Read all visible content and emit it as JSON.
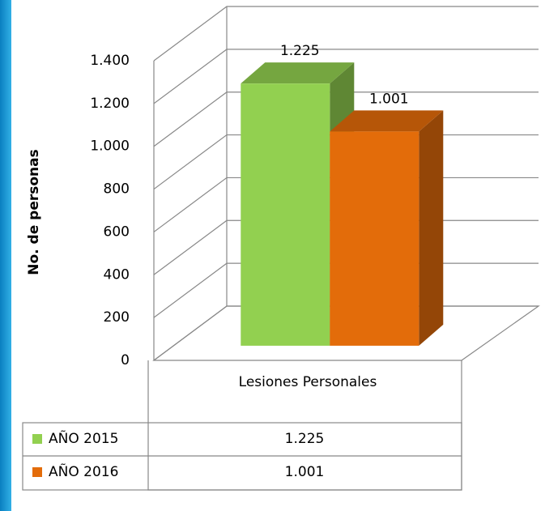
{
  "chart_data": {
    "type": "bar3d",
    "y_label": "No. de personas",
    "categories": [
      "Lesiones Personales"
    ],
    "series": [
      {
        "name": "AÑO 2015",
        "color": "#92d050",
        "values": [
          1225
        ],
        "value_labels": [
          "1.225"
        ]
      },
      {
        "name": "AÑO 2016",
        "color": "#e36c0a",
        "values": [
          1001
        ],
        "value_labels": [
          "1.001"
        ]
      }
    ],
    "ylim": [
      0,
      1400
    ],
    "yticks": [
      0,
      200,
      400,
      600,
      800,
      {
        "value": 1000,
        "label": "1.000"
      },
      {
        "value": 1200,
        "label": "1.200"
      },
      {
        "value": 1400,
        "label": "1.400"
      }
    ],
    "grid": true,
    "data_table": true
  }
}
